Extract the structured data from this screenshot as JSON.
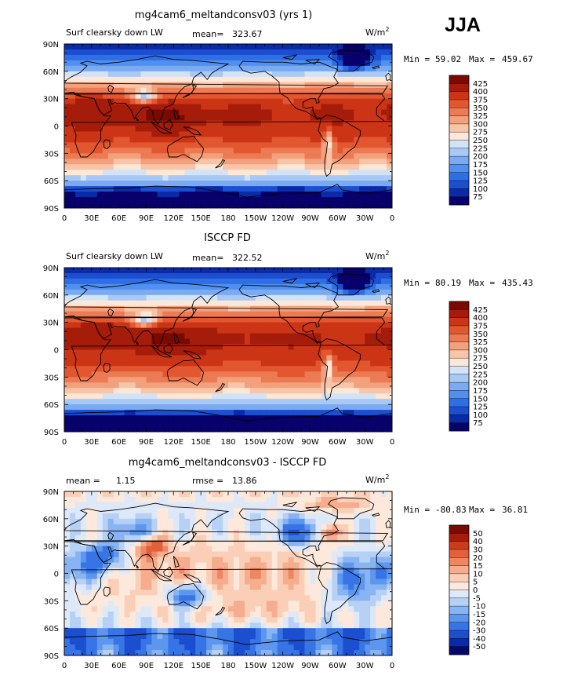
{
  "season": "JJA",
  "chart_data": [
    {
      "type": "heatmap",
      "title": "mg4cam6_meltandconsv03 (yrs 1)",
      "variable": "Surf clearsky down LW",
      "stat_label": "mean=",
      "stat_value": "323.67",
      "units": "W/m",
      "units_sup": "2",
      "min_label": "Min =",
      "min_value": "59.02",
      "max_label": "Max =",
      "max_value": "459.67",
      "xlim": [
        0,
        360
      ],
      "ylim": [
        -90,
        90
      ],
      "x_ticks": [
        "0",
        "30E",
        "60E",
        "90E",
        "120E",
        "150E",
        "180",
        "150W",
        "120W",
        "90W",
        "60W",
        "30W",
        "0"
      ],
      "y_ticks": [
        "90N",
        "60N",
        "30N",
        "0",
        "30S",
        "60S",
        "90S"
      ],
      "colorbar": [
        "425",
        "400",
        "375",
        "350",
        "325",
        "300",
        "275",
        "250",
        "225",
        "200",
        "175",
        "150",
        "125",
        "100",
        "75"
      ]
    },
    {
      "type": "heatmap",
      "title": "ISCCP FD",
      "variable": "Surf clearsky down LW",
      "stat_label": "mean=",
      "stat_value": "322.52",
      "units": "W/m",
      "units_sup": "2",
      "min_label": "Min =",
      "min_value": "80.19",
      "max_label": "Max =",
      "max_value": "435.43",
      "xlim": [
        0,
        360
      ],
      "ylim": [
        -90,
        90
      ],
      "x_ticks": [
        "0",
        "30E",
        "60E",
        "90E",
        "120E",
        "150E",
        "180",
        "150W",
        "120W",
        "90W",
        "60W",
        "30W",
        "0"
      ],
      "y_ticks": [
        "90N",
        "60N",
        "30N",
        "0",
        "30S",
        "60S",
        "90S"
      ],
      "colorbar": [
        "425",
        "400",
        "375",
        "350",
        "325",
        "300",
        "275",
        "250",
        "225",
        "200",
        "175",
        "150",
        "125",
        "100",
        "75"
      ]
    },
    {
      "type": "heatmap",
      "title": "mg4cam6_meltandconsv03 - ISCCP FD",
      "stat_label": "mean =",
      "stat_value": "1.15",
      "stat2_label": "rmse =",
      "stat2_value": "13.86",
      "units": "W/m",
      "units_sup": "2",
      "min_label": "Min =",
      "min_value": "-80.83",
      "max_label": "Max =",
      "max_value": "36.81",
      "xlim": [
        0,
        360
      ],
      "ylim": [
        -90,
        90
      ],
      "x_ticks": [
        "0",
        "30E",
        "60E",
        "90E",
        "120E",
        "150E",
        "180",
        "150W",
        "120W",
        "90W",
        "60W",
        "30W",
        "0"
      ],
      "y_ticks": [
        "90N",
        "60N",
        "30N",
        "0",
        "30S",
        "60S",
        "90S"
      ],
      "colorbar": [
        "50",
        "40",
        "30",
        "20",
        "15",
        "10",
        "5",
        "0",
        "-5",
        "-10",
        "-15",
        "-20",
        "-30",
        "-40",
        "-50"
      ]
    }
  ],
  "colors": {
    "abs_scale": [
      "#08006b",
      "#0a2aa8",
      "#1b4fd0",
      "#2f6fe6",
      "#5090f0",
      "#7aaaf2",
      "#a8c8f5",
      "#d3e3f7",
      "#fde7d6",
      "#f8c5a8",
      "#f3a07c",
      "#ec7a52",
      "#e25630",
      "#cc3416",
      "#a51c0a",
      "#780a02"
    ],
    "diff_scale": [
      "#06066b",
      "#0a2aa8",
      "#1b4fd0",
      "#3774e6",
      "#5c96ef",
      "#88b4f3",
      "#b6d0f6",
      "#dde8f8",
      "#fde9db",
      "#fbcfb7",
      "#f6ad8d",
      "#ee8661",
      "#e2603c",
      "#cc3b1a",
      "#a51c0a",
      "#780a02"
    ],
    "land": "#000000"
  }
}
